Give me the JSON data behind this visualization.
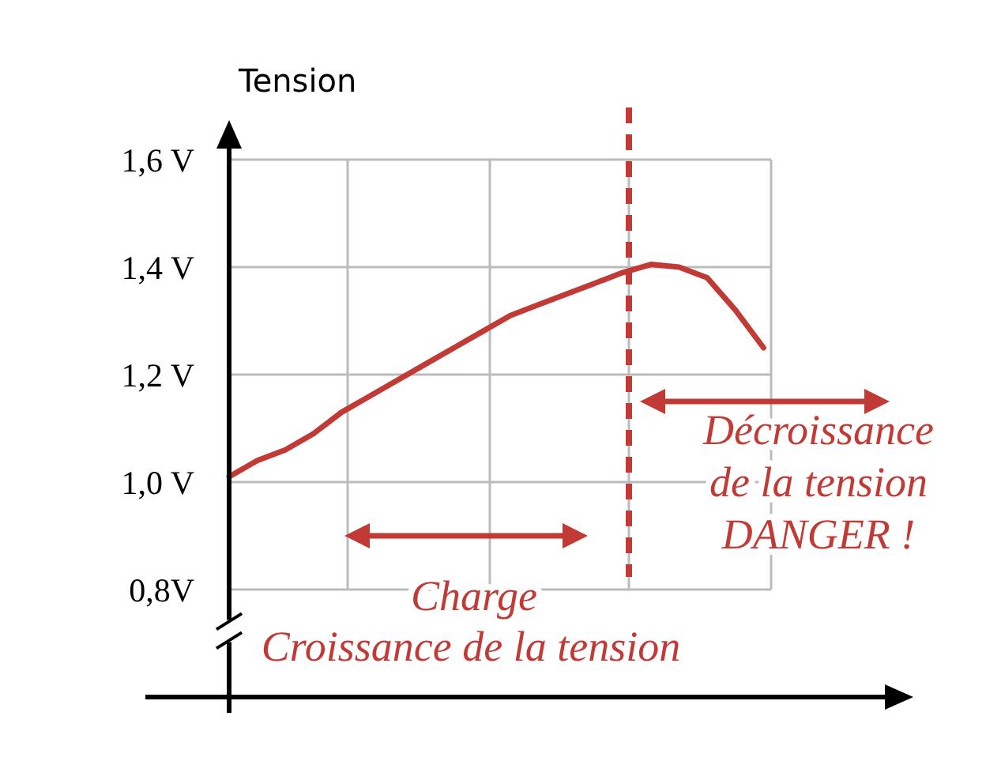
{
  "chart_data": {
    "type": "line",
    "ylabel": "Tension",
    "categories": [
      null,
      null,
      null,
      null,
      null,
      null,
      null,
      null,
      null,
      null,
      null,
      null,
      null,
      null,
      null,
      null,
      null,
      null,
      null,
      null
    ],
    "series": [
      {
        "color": "#c23a36",
        "values": [
          1.01,
          1.04,
          1.06,
          1.09,
          1.13,
          1.16,
          1.19,
          1.22,
          1.25,
          1.28,
          1.31,
          1.33,
          1.35,
          1.37,
          1.39,
          1.405,
          1.4,
          1.38,
          1.32,
          1.25
        ]
      }
    ],
    "ylim": [
      0.6,
      1.65
    ],
    "yticks": [
      {
        "value": 0.8,
        "label": "0,8V"
      },
      {
        "value": 1.0,
        "label": "1,0 V"
      },
      {
        "value": 1.2,
        "label": "1,2 V"
      },
      {
        "value": 1.4,
        "label": "1,4 V"
      },
      {
        "value": 1.6,
        "label": "1,6 V"
      }
    ],
    "grid": true,
    "line_style": "solid",
    "annotations": [
      "Charge",
      "Croissance de la tension",
      "Décroissance\nde la tension\nDANGER !"
    ]
  }
}
